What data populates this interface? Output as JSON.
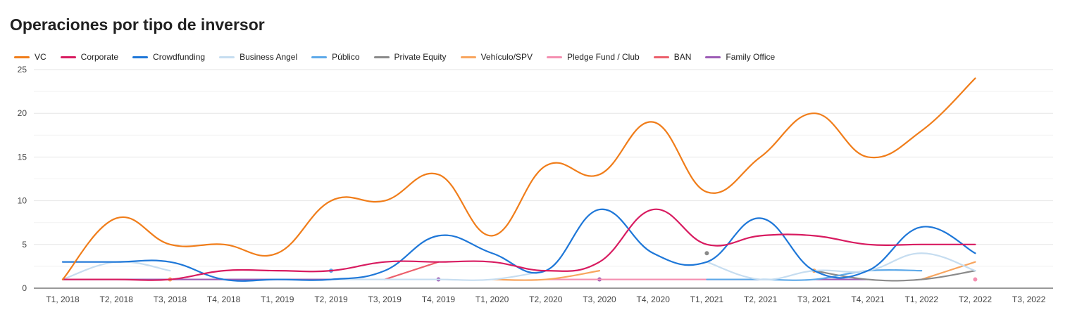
{
  "chart_data": {
    "type": "line",
    "title": "Operaciones por tipo de inversor",
    "xlabel": "",
    "ylabel": "",
    "categories": [
      "T1, 2018",
      "T2, 2018",
      "T3, 2018",
      "T4, 2018",
      "T1, 2019",
      "T2, 2019",
      "T3, 2019",
      "T4, 2019",
      "T1, 2020",
      "T2, 2020",
      "T3, 2020",
      "T4, 2020",
      "T1, 2021",
      "T2, 2021",
      "T3, 2021",
      "T4, 2021",
      "T1, 2022",
      "T2, 2022",
      "T3, 2022"
    ],
    "ylim": [
      0,
      25
    ],
    "yticks": [
      "0",
      "5",
      "10",
      "15",
      "20",
      "25"
    ],
    "grid": true,
    "legend_position": "top-left",
    "series": [
      {
        "name": "VC",
        "color": "#F07D1A",
        "values": [
          1,
          8,
          5,
          5,
          4,
          10,
          10,
          13,
          6,
          14,
          13,
          19,
          11,
          15,
          20,
          15,
          18,
          24,
          null
        ]
      },
      {
        "name": "Corporate",
        "color": "#D81B60",
        "values": [
          1,
          1,
          1,
          2,
          2,
          2,
          3,
          3,
          3,
          2,
          3,
          9,
          5,
          6,
          6,
          5,
          5,
          5,
          null
        ]
      },
      {
        "name": "Crowdfunding",
        "color": "#1E77D8",
        "values": [
          3,
          3,
          3,
          1,
          1,
          1,
          2,
          6,
          4,
          2,
          9,
          4,
          3,
          8,
          2,
          2,
          7,
          4,
          null
        ]
      },
      {
        "name": "Business Angel",
        "color": "#C6DDF0",
        "values": [
          1,
          3,
          2,
          null,
          null,
          1,
          1,
          1,
          1,
          2,
          null,
          null,
          3,
          1,
          2,
          2,
          4,
          2,
          null
        ]
      },
      {
        "name": "Público",
        "color": "#5DA9E9",
        "values": [
          null,
          null,
          null,
          null,
          null,
          2,
          null,
          null,
          null,
          null,
          null,
          null,
          1,
          1,
          1,
          2,
          2,
          null,
          null
        ]
      },
      {
        "name": "Private Equity",
        "color": "#8A8A8A",
        "values": [
          null,
          null,
          null,
          null,
          null,
          null,
          null,
          null,
          null,
          null,
          null,
          null,
          4,
          null,
          2,
          1,
          1,
          2,
          null
        ]
      },
      {
        "name": "Vehículo/SPV",
        "color": "#F8A55E",
        "values": [
          null,
          null,
          1,
          null,
          null,
          null,
          null,
          null,
          1,
          1,
          2,
          null,
          null,
          null,
          2,
          null,
          1,
          3,
          null
        ]
      },
      {
        "name": "Pledge Fund / Club",
        "color": "#F48FB1",
        "values": [
          null,
          null,
          null,
          null,
          null,
          null,
          null,
          null,
          null,
          1,
          1,
          1,
          1,
          1,
          null,
          null,
          null,
          1,
          null
        ]
      },
      {
        "name": "BAN",
        "color": "#EC5F6B",
        "values": [
          null,
          null,
          null,
          null,
          null,
          null,
          1,
          3,
          null,
          null,
          null,
          null,
          null,
          null,
          null,
          null,
          null,
          null,
          null
        ]
      },
      {
        "name": "Family Office",
        "color": "#9C5BB5",
        "values": [
          1,
          1,
          1,
          1,
          1,
          1,
          null,
          1,
          null,
          null,
          1,
          null,
          null,
          null,
          1,
          1,
          null,
          null,
          null
        ]
      }
    ]
  }
}
